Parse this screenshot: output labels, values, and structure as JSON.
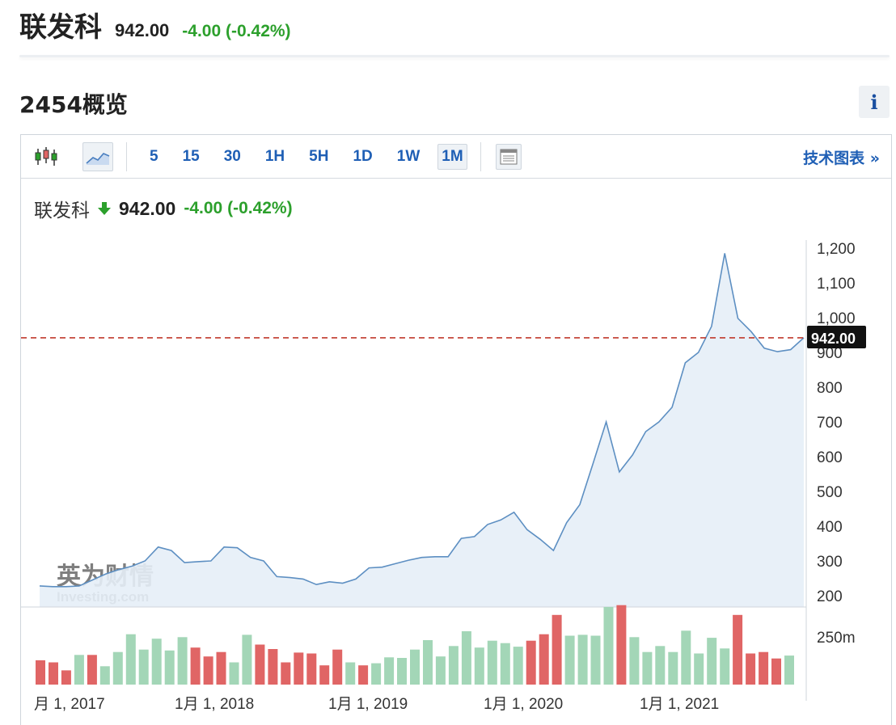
{
  "header": {
    "name": "联发科",
    "price": "942.00",
    "change": "-4.00",
    "change_pct": "(-0.42%)"
  },
  "section_title": "2454概览",
  "info_label": "i",
  "toolbar": {
    "timeframes": [
      "5",
      "15",
      "30",
      "1H",
      "5H",
      "1D",
      "1W",
      "1M"
    ],
    "active_timeframe": "1M",
    "tech_link": "技术图表 »"
  },
  "legend": {
    "name": "联发科",
    "price": "942.00",
    "change": "-4.00",
    "change_pct": "(-0.42%)"
  },
  "watermark": {
    "cn": "英为财情",
    "en": "Investing.com"
  },
  "colors": {
    "up": "#2ca02c",
    "line": "#5d8fc2",
    "area": "#e6eef7",
    "vol_up": "#a3d6b7",
    "vol_down": "#e06565",
    "ref_line": "#c0392b",
    "link": "#1f5fb5"
  },
  "chart_data": {
    "type": "area",
    "x_labels": [
      "月 1, 2017",
      "1月 1, 2018",
      "1月 1, 2019",
      "1月 1, 2020",
      "1月 1, 2021"
    ],
    "y_ticks": [
      "200",
      "300",
      "400",
      "500",
      "600",
      "700",
      "800",
      "900",
      "1,000",
      "1,100",
      "1,200"
    ],
    "ylim": [
      200,
      1200
    ],
    "current_value": 942,
    "current_label": "942.00",
    "grid": false,
    "price": [
      228,
      226,
      226,
      228,
      245,
      262,
      275,
      285,
      300,
      340,
      330,
      295,
      298,
      300,
      340,
      338,
      310,
      300,
      255,
      252,
      248,
      232,
      240,
      236,
      248,
      280,
      282,
      292,
      302,
      310,
      312,
      312,
      365,
      370,
      405,
      418,
      440,
      390,
      362,
      330,
      410,
      462,
      580,
      700,
      556,
      605,
      672,
      700,
      742,
      870,
      900,
      975,
      1185,
      998,
      960,
      912,
      902,
      908,
      942
    ],
    "volume_label": "250m",
    "volume_max": 300,
    "volume": [
      {
        "v": 82,
        "up": false
      },
      {
        "v": 75,
        "up": false
      },
      {
        "v": 48,
        "up": false
      },
      {
        "v": 100,
        "up": true
      },
      {
        "v": 100,
        "up": false
      },
      {
        "v": 62,
        "up": true
      },
      {
        "v": 110,
        "up": true
      },
      {
        "v": 170,
        "up": true
      },
      {
        "v": 118,
        "up": true
      },
      {
        "v": 155,
        "up": true
      },
      {
        "v": 115,
        "up": true
      },
      {
        "v": 160,
        "up": true
      },
      {
        "v": 125,
        "up": false
      },
      {
        "v": 95,
        "up": false
      },
      {
        "v": 110,
        "up": false
      },
      {
        "v": 75,
        "up": true
      },
      {
        "v": 168,
        "up": true
      },
      {
        "v": 135,
        "up": false
      },
      {
        "v": 120,
        "up": false
      },
      {
        "v": 75,
        "up": false
      },
      {
        "v": 108,
        "up": false
      },
      {
        "v": 105,
        "up": false
      },
      {
        "v": 65,
        "up": false
      },
      {
        "v": 118,
        "up": false
      },
      {
        "v": 75,
        "up": true
      },
      {
        "v": 65,
        "up": false
      },
      {
        "v": 72,
        "up": true
      },
      {
        "v": 92,
        "up": true
      },
      {
        "v": 90,
        "up": true
      },
      {
        "v": 118,
        "up": true
      },
      {
        "v": 150,
        "up": true
      },
      {
        "v": 95,
        "up": true
      },
      {
        "v": 130,
        "up": true
      },
      {
        "v": 180,
        "up": true
      },
      {
        "v": 125,
        "up": true
      },
      {
        "v": 148,
        "up": true
      },
      {
        "v": 140,
        "up": true
      },
      {
        "v": 128,
        "up": true
      },
      {
        "v": 148,
        "up": false
      },
      {
        "v": 170,
        "up": false
      },
      {
        "v": 235,
        "up": false
      },
      {
        "v": 165,
        "up": true
      },
      {
        "v": 168,
        "up": true
      },
      {
        "v": 165,
        "up": true
      },
      {
        "v": 262,
        "up": true
      },
      {
        "v": 268,
        "up": false
      },
      {
        "v": 160,
        "up": true
      },
      {
        "v": 110,
        "up": true
      },
      {
        "v": 130,
        "up": true
      },
      {
        "v": 110,
        "up": true
      },
      {
        "v": 182,
        "up": true
      },
      {
        "v": 105,
        "up": true
      },
      {
        "v": 158,
        "up": true
      },
      {
        "v": 122,
        "up": true
      },
      {
        "v": 235,
        "up": false
      },
      {
        "v": 105,
        "up": false
      },
      {
        "v": 110,
        "up": false
      },
      {
        "v": 88,
        "up": false
      },
      {
        "v": 98,
        "up": true
      }
    ]
  }
}
